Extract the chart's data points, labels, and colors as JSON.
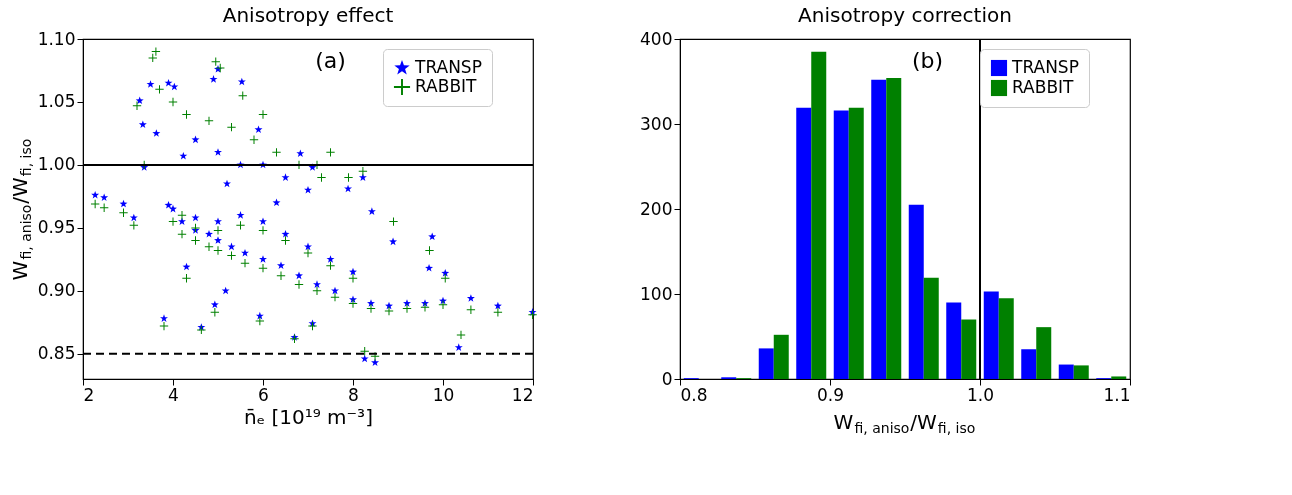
{
  "chart_data": [
    {
      "type": "scatter",
      "title": "Anisotropy effect",
      "xlabel": "n̄ₑ [10¹⁹ m⁻³]",
      "ylabel": "W$_{fi, aniso}$/W$_{fi, iso}$",
      "annotations": [
        "(a)"
      ],
      "xlim": [
        2,
        12
      ],
      "xticks": [
        2,
        4,
        6,
        8,
        10,
        12
      ],
      "ylim": [
        0.83,
        1.1
      ],
      "yticks": [
        0.85,
        {
          "value": 0.9,
          "label": "0.90"
        },
        0.95,
        {
          "value": 1.0,
          "label": "1.00"
        },
        1.05,
        {
          "value": 1.1,
          "label": "1.10"
        }
      ],
      "legend": "top right",
      "grid": false,
      "ref_lines": [
        {
          "axis": "y",
          "value": 1.0,
          "color": "#000000",
          "line_style": "solid"
        },
        {
          "axis": "y",
          "value": 0.85,
          "color": "#000000",
          "line_style": "dashed"
        }
      ],
      "series": [
        {
          "name": "TRANSP",
          "color": "#0000ff",
          "marker": "star",
          "x": [
            2.27,
            2.47,
            2.9,
            3.13,
            3.26,
            3.33,
            3.36,
            3.5,
            3.63,
            3.8,
            3.9,
            4.03,
            3.9,
            4.23,
            4.3,
            4.63,
            4.93,
            4.9,
            5.0,
            5.17,
            5.53,
            5.93,
            5.9,
            6.7,
            7.1,
            6.83,
            7.1,
            7.89,
            8.22,
            8.42,
            8.26,
            8.49,
            8.89,
            9.76,
            9.69,
            10.05,
            10.35,
            10.62,
            11.22,
            11.99,
            4.2,
            4.5,
            4.8,
            5.0,
            5.3,
            5.6,
            6.0,
            6.4,
            6.8,
            7.2,
            7.6,
            8.0,
            8.4,
            8.8,
            9.2,
            9.6,
            10.0,
            4.0,
            4.5,
            5.0,
            5.5,
            6.0,
            6.5,
            7.0,
            7.5,
            8.0,
            4.5,
            5.0,
            5.5,
            6.0,
            6.5,
            7.0,
            5.2,
            6.3
          ],
          "values": [
            0.976,
            0.974,
            0.969,
            0.958,
            1.051,
            1.032,
            0.998,
            1.064,
            1.025,
            0.878,
            1.065,
            1.062,
            0.968,
            1.007,
            0.919,
            0.871,
            0.889,
            1.068,
            1.076,
            0.9,
            1.066,
            0.88,
            1.028,
            0.863,
            0.874,
            1.009,
            0.998,
            0.981,
            0.99,
            0.963,
            0.846,
            0.843,
            0.939,
            0.943,
            0.918,
            0.914,
            0.855,
            0.894,
            0.888,
            0.883,
            0.955,
            0.948,
            0.945,
            0.94,
            0.935,
            0.93,
            0.925,
            0.92,
            0.912,
            0.905,
            0.9,
            0.893,
            0.89,
            0.888,
            0.89,
            0.89,
            0.892,
            0.965,
            0.958,
            0.955,
            0.96,
            0.955,
            0.945,
            0.935,
            0.925,
            0.915,
            1.02,
            1.01,
            1.0,
            1.0,
            0.99,
            0.98,
            0.985,
            0.97
          ]
        },
        {
          "name": "RABBIT",
          "color": "#008000",
          "marker": "cross",
          "x": [
            2.27,
            2.47,
            2.9,
            3.13,
            3.2,
            3.36,
            3.55,
            3.62,
            3.7,
            3.8,
            4.0,
            4.2,
            4.3,
            4.63,
            4.93,
            4.95,
            5.05,
            5.55,
            5.93,
            6.0,
            6.7,
            7.1,
            7.2,
            7.5,
            7.9,
            8.22,
            8.26,
            8.49,
            8.9,
            9.7,
            10.05,
            10.4,
            10.62,
            11.22,
            11.99,
            4.2,
            4.5,
            4.8,
            5.0,
            5.3,
            5.6,
            6.0,
            6.4,
            6.8,
            7.2,
            7.6,
            8.0,
            8.4,
            8.8,
            9.2,
            9.6,
            10.0,
            4.0,
            4.5,
            5.0,
            5.5,
            6.0,
            6.5,
            7.0,
            7.5,
            8.0,
            4.3,
            4.8,
            5.3,
            5.8,
            6.3,
            6.8,
            7.3
          ],
          "values": [
            0.969,
            0.966,
            0.962,
            0.952,
            1.047,
            1.0,
            1.085,
            1.09,
            1.06,
            0.872,
            1.05,
            0.96,
            0.91,
            0.869,
            0.883,
            1.082,
            1.077,
            1.055,
            0.876,
            1.04,
            0.862,
            0.872,
            1.0,
            1.01,
            0.99,
            0.995,
            0.852,
            0.848,
            0.955,
            0.932,
            0.91,
            0.865,
            0.885,
            0.883,
            0.881,
            0.945,
            0.94,
            0.935,
            0.932,
            0.928,
            0.922,
            0.918,
            0.912,
            0.905,
            0.9,
            0.895,
            0.89,
            0.886,
            0.884,
            0.886,
            0.887,
            0.889,
            0.955,
            0.95,
            0.948,
            0.952,
            0.948,
            0.94,
            0.93,
            0.92,
            0.91,
            1.04,
            1.035,
            1.03,
            1.02,
            1.01,
            1.0,
            0.99
          ]
        }
      ]
    },
    {
      "type": "histogram",
      "title": "Anisotropy correction",
      "xlabel": "W$_{fi, aniso}$/W$_{fi, iso}$",
      "annotations": [
        "(b)"
      ],
      "xlim": [
        0.8,
        1.1
      ],
      "xticks": [
        0.8,
        0.9,
        {
          "value": 1.0,
          "label": "1.0"
        },
        1.1
      ],
      "ylim": [
        0,
        400
      ],
      "yticks": [
        0,
        100,
        200,
        300,
        400
      ],
      "legend": "top right",
      "grid": false,
      "ref_lines": [
        {
          "axis": "x",
          "value": 1.0,
          "color": "#000000",
          "line_style": "solid"
        }
      ],
      "bins": [
        0.8,
        0.825,
        0.85,
        0.875,
        0.9,
        0.925,
        0.95,
        0.975,
        1.0,
        1.025,
        1.05,
        1.075,
        1.1
      ],
      "series": [
        {
          "name": "TRANSP",
          "color": "#0000ff",
          "values": [
            1,
            2,
            36,
            319,
            316,
            352,
            205,
            90,
            103,
            35,
            17,
            1
          ]
        },
        {
          "name": "RABBIT",
          "color": "#008000",
          "values": [
            0,
            1,
            52,
            385,
            319,
            354,
            119,
            70,
            95,
            61,
            16,
            3
          ]
        }
      ]
    }
  ]
}
